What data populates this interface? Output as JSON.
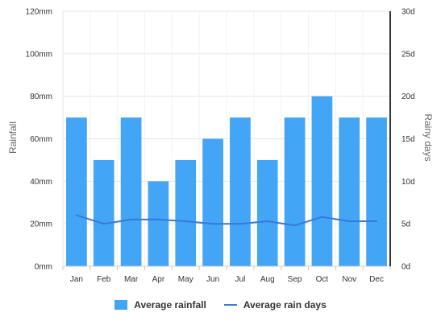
{
  "chart_data": {
    "type": "bar",
    "categories": [
      "Jan",
      "Feb",
      "Mar",
      "Apr",
      "May",
      "Jun",
      "Jul",
      "Aug",
      "Sep",
      "Oct",
      "Nov",
      "Dec"
    ],
    "series": [
      {
        "name": "Average rainfall",
        "type": "bar",
        "axis": "left",
        "unit": "mm",
        "color": "#42a5f5",
        "values": [
          70,
          50,
          70,
          40,
          50,
          60,
          70,
          50,
          70,
          80,
          70,
          70
        ]
      },
      {
        "name": "Average rain days",
        "type": "line",
        "axis": "right",
        "unit": "d",
        "color": "#3c78d8",
        "values": [
          6,
          5,
          5.5,
          5.5,
          5.3,
          5,
          5,
          5.3,
          4.8,
          5.8,
          5.3,
          5.3
        ]
      }
    ],
    "ylabel": "Rainfall",
    "y2label": "Rainy days",
    "ylim": [
      0,
      120
    ],
    "y2lim": [
      0,
      30
    ],
    "yticks": [
      "0mm",
      "20mm",
      "40mm",
      "60mm",
      "80mm",
      "100mm",
      "120mm"
    ],
    "y2ticks": [
      "0d",
      "5d",
      "10d",
      "15d",
      "20d",
      "25d",
      "30d"
    ],
    "grid": true,
    "legend_position": "bottom"
  }
}
